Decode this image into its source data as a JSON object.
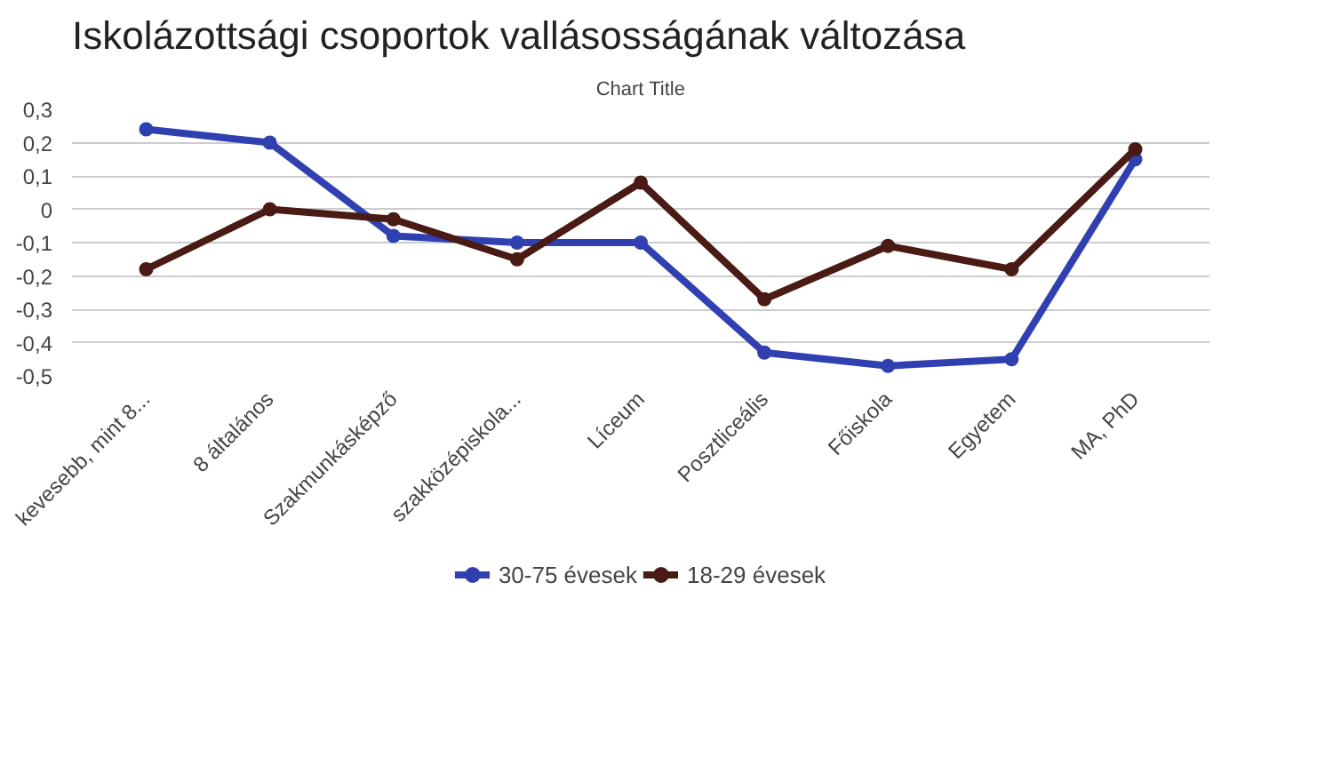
{
  "chart_data": {
    "type": "line",
    "title": "Iskolázottsági csoportok vallásosságának változása",
    "subtitle": "Chart Title",
    "categories": [
      "kevesebb, mint 8...",
      "8 általános",
      "Szakmunkásképző",
      "szakközépiskola...",
      "Líceum",
      "Posztliceális",
      "Főiskola",
      "Egyetem",
      "MA, PhD"
    ],
    "series": [
      {
        "name": "30-75 évesek",
        "color": "#3040b0",
        "values": [
          0.24,
          0.2,
          -0.08,
          -0.1,
          -0.1,
          -0.43,
          -0.47,
          -0.45,
          0.15
        ]
      },
      {
        "name": "18-29 évesek",
        "color": "#4a1a14",
        "values": [
          -0.18,
          0.0,
          -0.03,
          -0.15,
          0.08,
          -0.27,
          -0.11,
          -0.18,
          0.18
        ]
      }
    ],
    "ylim": [
      -0.5,
      0.3
    ],
    "yticks": [
      {
        "value": -0.5,
        "label": "-0,5"
      },
      {
        "value": -0.4,
        "label": "-0,4"
      },
      {
        "value": -0.3,
        "label": "-0,3"
      },
      {
        "value": -0.2,
        "label": "-0,2"
      },
      {
        "value": -0.1,
        "label": "-0,1"
      },
      {
        "value": 0,
        "label": "0"
      },
      {
        "value": 0.1,
        "label": "0,1"
      },
      {
        "value": 0.2,
        "label": "0,2"
      },
      {
        "value": 0.3,
        "label": "0,3"
      }
    ],
    "grid": "y",
    "legend": "bottom",
    "marker": "circle",
    "line_style": "solid"
  }
}
